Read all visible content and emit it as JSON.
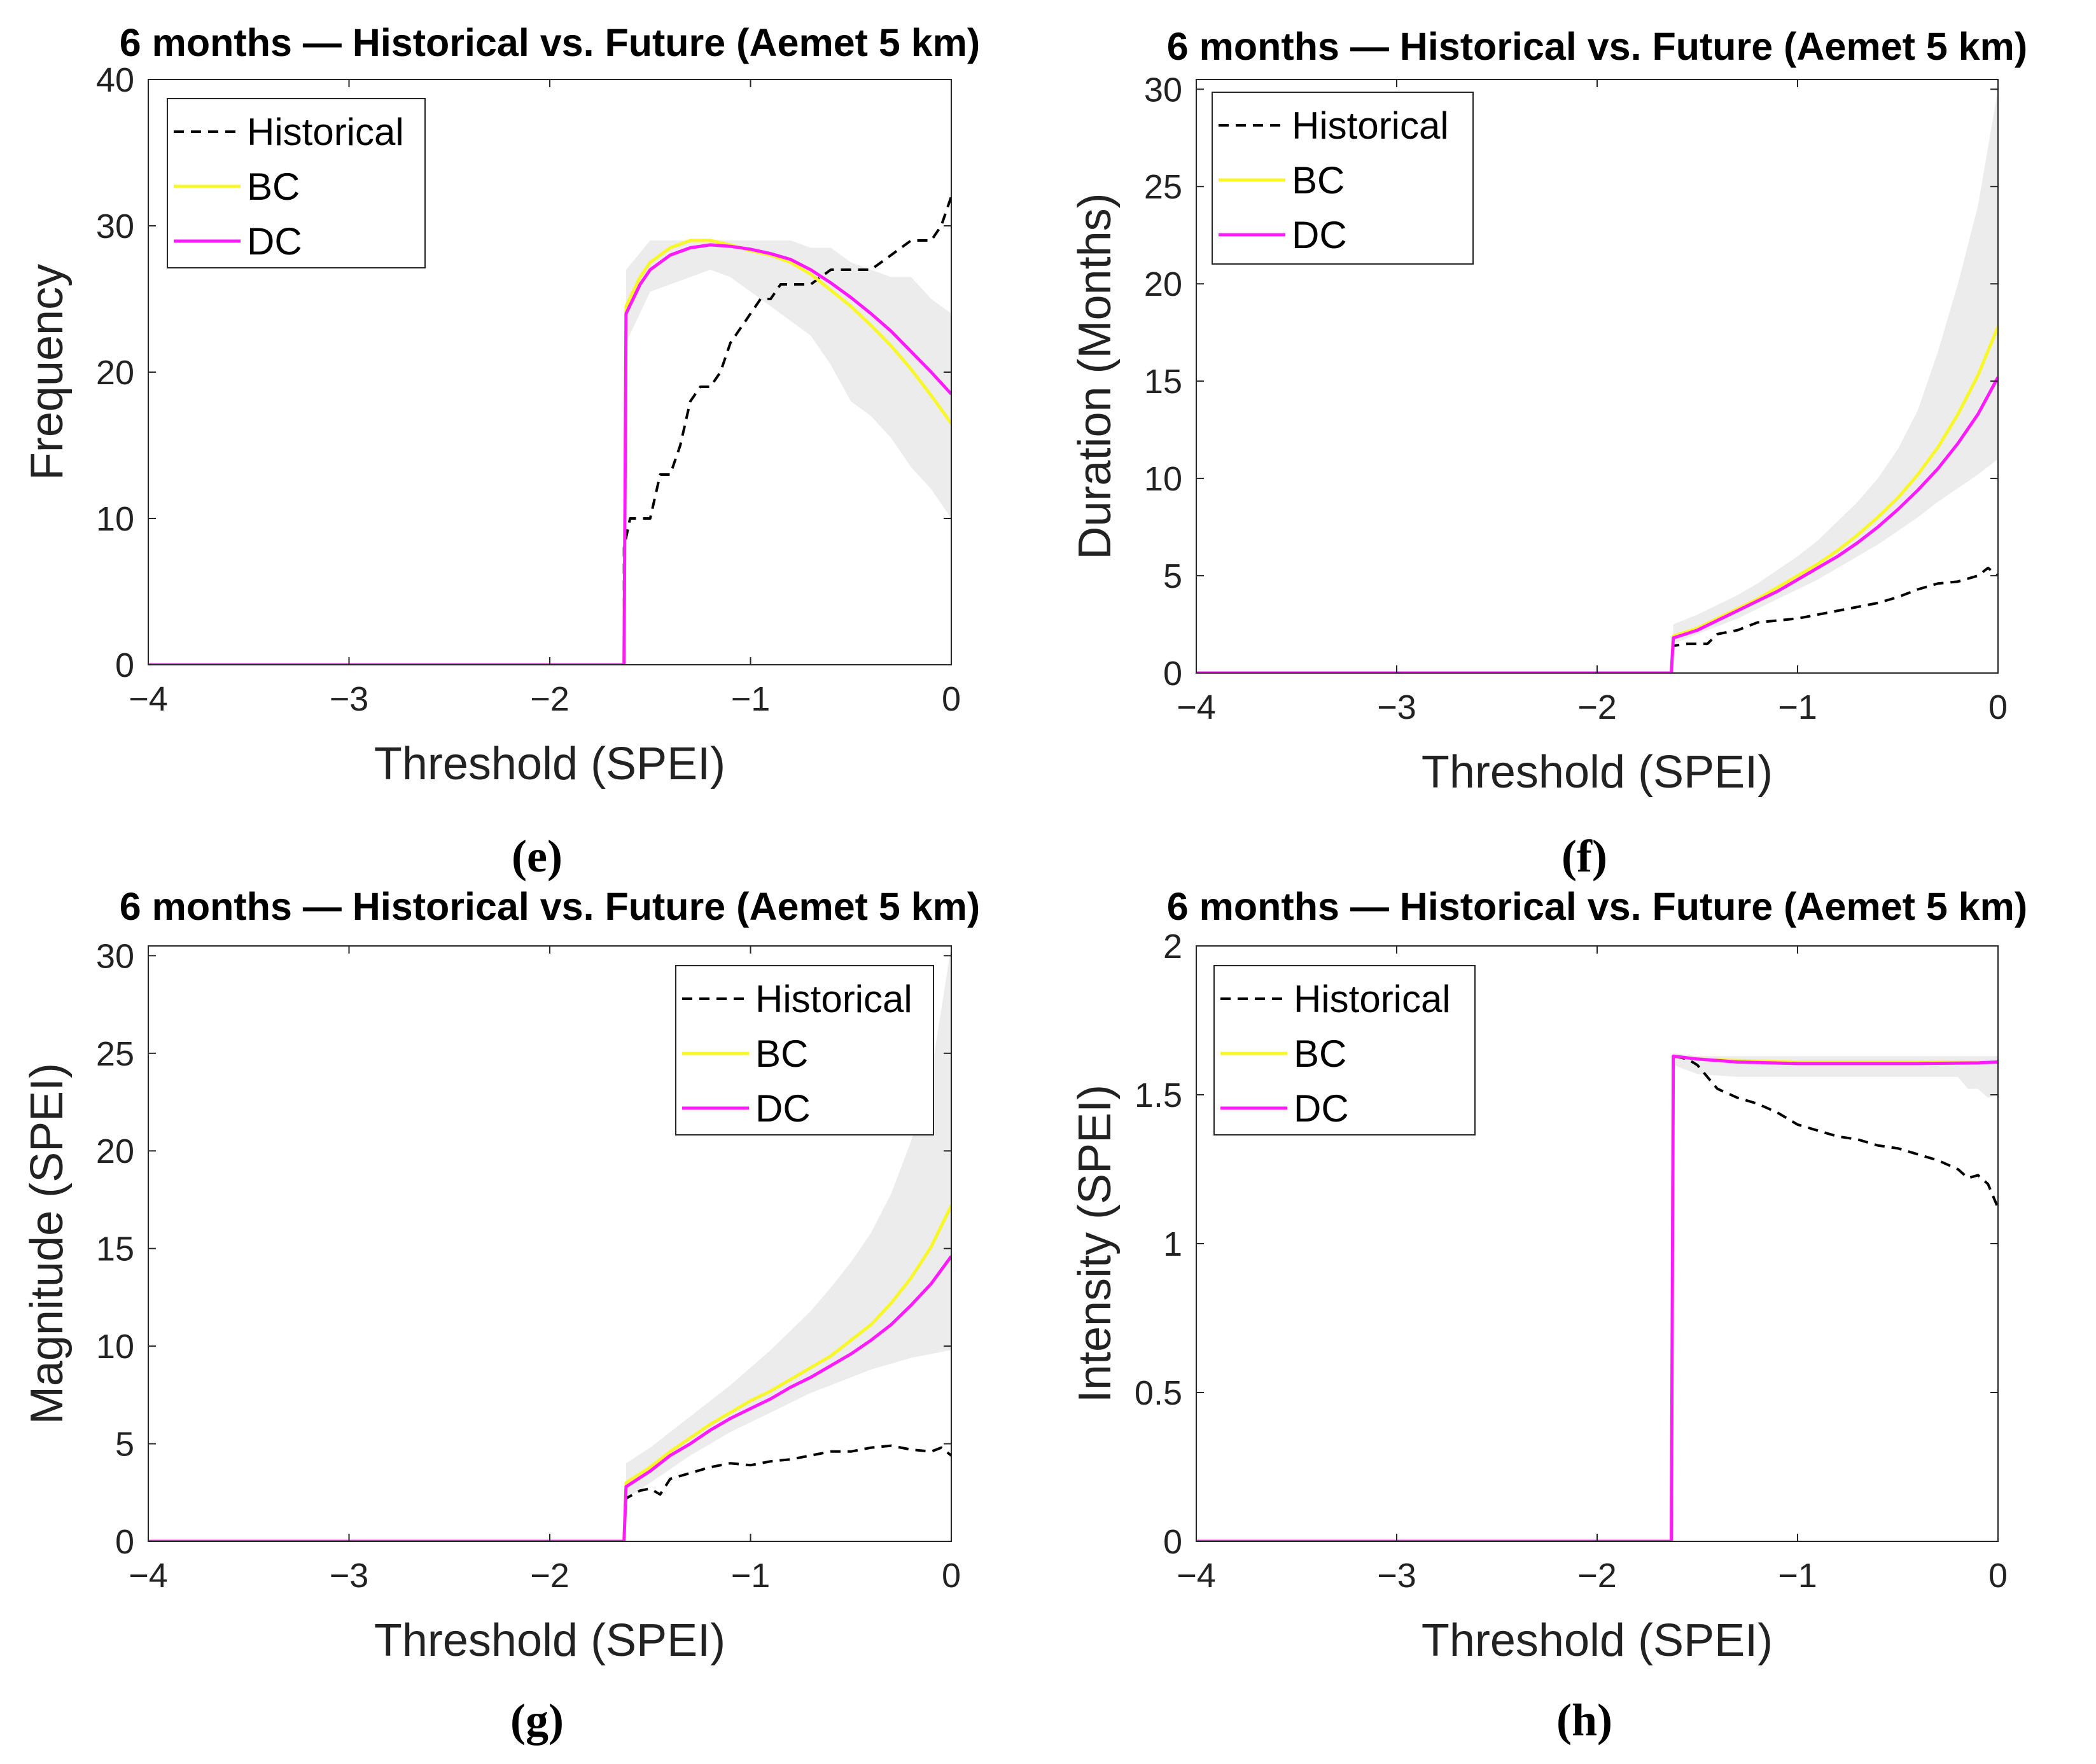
{
  "figure": {
    "panel_label_open": "(",
    "panel_label_close": ")"
  },
  "chart_data": [
    {
      "id": "e",
      "type": "line",
      "title": "6 months — Historical vs. Future (Aemet 5 km)",
      "xlabel": "Threshold (SPEI)",
      "ylabel": "Frequency",
      "panel_label": "e",
      "xlim": [
        -4,
        0
      ],
      "ylim": [
        0,
        40
      ],
      "xticks": [
        -4,
        -3,
        -2,
        -1,
        0
      ],
      "xtick_labels": [
        "−4",
        "−3",
        "−2",
        "−1",
        "0"
      ],
      "yticks": [
        0,
        10,
        20,
        30,
        40
      ],
      "ytick_labels": [
        "0",
        "10",
        "20",
        "30",
        "40"
      ],
      "legend_position": "top-left",
      "legend": [
        "Historical",
        "BC",
        "DC"
      ],
      "band": {
        "x": [
          -1.62,
          -1.5,
          -1.4,
          -1.3,
          -1.2,
          -1.1,
          -1.0,
          -0.9,
          -0.8,
          -0.7,
          -0.6,
          -0.5,
          -0.4,
          -0.3,
          -0.2,
          -0.1,
          0.0
        ],
        "upper": [
          27,
          29,
          29,
          29,
          29,
          29,
          29,
          29,
          29,
          28.5,
          28.5,
          27.5,
          27,
          26.5,
          26.5,
          25,
          24
        ],
        "lower": [
          22,
          25.5,
          26,
          26.5,
          27,
          26.5,
          25.5,
          24.5,
          23.5,
          22.5,
          20.5,
          18,
          17,
          15.5,
          13.5,
          12,
          10
        ]
      },
      "series": [
        {
          "name": "Historical",
          "x": [
            -4,
            -1.63,
            -1.63,
            -1.6,
            -1.5,
            -1.45,
            -1.4,
            -1.35,
            -1.3,
            -1.25,
            -1.2,
            -1.15,
            -1.1,
            -1.05,
            -1.0,
            -0.95,
            -0.9,
            -0.85,
            -0.8,
            -0.75,
            -0.7,
            -0.6,
            -0.5,
            -0.4,
            -0.3,
            -0.2,
            -0.1,
            -0.05,
            0.0
          ],
          "y": [
            0,
            0,
            8,
            10,
            10,
            13,
            13,
            15,
            18,
            19,
            19,
            20,
            22,
            23,
            24,
            25,
            25,
            26,
            26,
            26,
            26,
            27,
            27,
            27,
            28,
            29,
            29,
            30,
            32
          ]
        },
        {
          "name": "BC",
          "x": [
            -4,
            -1.63,
            -1.62,
            -1.55,
            -1.5,
            -1.4,
            -1.3,
            -1.2,
            -1.1,
            -1.0,
            -0.9,
            -0.8,
            -0.7,
            -0.6,
            -0.5,
            -0.4,
            -0.3,
            -0.2,
            -0.1,
            0.0
          ],
          "y": [
            0,
            0,
            24.5,
            26.5,
            27.5,
            28.5,
            29,
            29,
            28.7,
            28.3,
            28,
            27.5,
            26.7,
            25.6,
            24.5,
            23.2,
            21.8,
            20.2,
            18.4,
            16.5
          ]
        },
        {
          "name": "DC",
          "x": [
            -4,
            -1.63,
            -1.62,
            -1.55,
            -1.5,
            -1.4,
            -1.3,
            -1.2,
            -1.1,
            -1.0,
            -0.9,
            -0.8,
            -0.7,
            -0.6,
            -0.5,
            -0.4,
            -0.3,
            -0.2,
            -0.1,
            0.0
          ],
          "y": [
            0,
            0,
            24,
            26,
            27,
            28,
            28.5,
            28.7,
            28.6,
            28.4,
            28.1,
            27.7,
            27,
            26.1,
            25.1,
            24,
            22.8,
            21.4,
            20,
            18.5
          ]
        }
      ]
    },
    {
      "id": "f",
      "type": "line",
      "title": "6 months — Historical vs. Future (Aemet 5 km)",
      "xlabel": "Threshold (SPEI)",
      "ylabel": "Duration (Months)",
      "panel_label": "f",
      "xlim": [
        -4,
        0
      ],
      "ylim": [
        0,
        30.5
      ],
      "xticks": [
        -4,
        -3,
        -2,
        -1,
        0
      ],
      "xtick_labels": [
        "−4",
        "−3",
        "−2",
        "−1",
        "0"
      ],
      "yticks": [
        0,
        5,
        10,
        15,
        20,
        25,
        30
      ],
      "ytick_labels": [
        "0",
        "5",
        "10",
        "15",
        "20",
        "25",
        "30"
      ],
      "legend_position": "top-left",
      "legend": [
        "Historical",
        "BC",
        "DC"
      ],
      "band": {
        "x": [
          -1.62,
          -1.5,
          -1.4,
          -1.3,
          -1.2,
          -1.1,
          -1.0,
          -0.9,
          -0.8,
          -0.7,
          -0.6,
          -0.5,
          -0.4,
          -0.3,
          -0.2,
          -0.1,
          0.0
        ],
        "upper": [
          2.5,
          3.0,
          3.5,
          4.0,
          4.6,
          5.3,
          6.0,
          6.8,
          7.8,
          8.8,
          10.0,
          11.5,
          13.5,
          16.5,
          20,
          24,
          30
        ],
        "lower": [
          1.5,
          2.0,
          2.4,
          2.8,
          3.3,
          3.8,
          4.3,
          4.8,
          5.4,
          6.0,
          6.6,
          7.3,
          8.0,
          8.8,
          9.5,
          10.2,
          11.0
        ]
      },
      "series": [
        {
          "name": "Historical",
          "x": [
            -4,
            -1.63,
            -1.62,
            -1.55,
            -1.45,
            -1.4,
            -1.3,
            -1.2,
            -1.1,
            -1.0,
            -0.9,
            -0.8,
            -0.7,
            -0.6,
            -0.5,
            -0.4,
            -0.3,
            -0.2,
            -0.1,
            -0.05,
            0.0
          ],
          "y": [
            0,
            0,
            1.4,
            1.5,
            1.5,
            2.0,
            2.2,
            2.6,
            2.7,
            2.8,
            3.0,
            3.2,
            3.4,
            3.6,
            3.9,
            4.3,
            4.6,
            4.7,
            5.0,
            5.4,
            5.0
          ]
        },
        {
          "name": "BC",
          "x": [
            -4,
            -1.63,
            -1.62,
            -1.5,
            -1.4,
            -1.3,
            -1.2,
            -1.1,
            -1.0,
            -0.9,
            -0.8,
            -0.7,
            -0.6,
            -0.5,
            -0.4,
            -0.3,
            -0.2,
            -0.1,
            0.0
          ],
          "y": [
            0,
            0,
            1.9,
            2.3,
            2.8,
            3.3,
            3.8,
            4.4,
            5.0,
            5.6,
            6.3,
            7.1,
            8.0,
            9.0,
            10.2,
            11.6,
            13.3,
            15.3,
            17.8
          ]
        },
        {
          "name": "DC",
          "x": [
            -4,
            -1.63,
            -1.62,
            -1.5,
            -1.4,
            -1.3,
            -1.2,
            -1.1,
            -1.0,
            -0.9,
            -0.8,
            -0.7,
            -0.6,
            -0.5,
            -0.4,
            -0.3,
            -0.2,
            -0.1,
            0.0
          ],
          "y": [
            0,
            0,
            1.8,
            2.2,
            2.7,
            3.2,
            3.7,
            4.2,
            4.8,
            5.4,
            6.0,
            6.7,
            7.5,
            8.4,
            9.4,
            10.5,
            11.8,
            13.3,
            15.2
          ]
        }
      ]
    },
    {
      "id": "g",
      "type": "line",
      "title": "6 months — Historical vs. Future (Aemet 5 km)",
      "xlabel": "Threshold (SPEI)",
      "ylabel": "Magnitude (SPEI)",
      "panel_label": "g",
      "xlim": [
        -4,
        0
      ],
      "ylim": [
        0,
        30.5
      ],
      "xticks": [
        -4,
        -3,
        -2,
        -1,
        0
      ],
      "xtick_labels": [
        "−4",
        "−3",
        "−2",
        "−1",
        "0"
      ],
      "yticks": [
        0,
        5,
        10,
        15,
        20,
        25,
        30
      ],
      "ytick_labels": [
        "0",
        "5",
        "10",
        "15",
        "20",
        "25",
        "30"
      ],
      "legend_position": "top-right",
      "legend": [
        "Historical",
        "BC",
        "DC"
      ],
      "band": {
        "x": [
          -1.62,
          -1.5,
          -1.4,
          -1.3,
          -1.2,
          -1.1,
          -1.0,
          -0.9,
          -0.8,
          -0.7,
          -0.6,
          -0.5,
          -0.4,
          -0.3,
          -0.2,
          -0.1,
          0.0
        ],
        "upper": [
          4.0,
          4.8,
          5.6,
          6.4,
          7.2,
          8.0,
          8.9,
          9.8,
          10.8,
          11.8,
          13.0,
          14.3,
          15.8,
          17.8,
          20.5,
          24,
          30.5
        ],
        "lower": [
          2.2,
          3.0,
          3.7,
          4.4,
          5.0,
          5.6,
          6.1,
          6.6,
          7.1,
          7.6,
          8.0,
          8.4,
          8.8,
          9.1,
          9.4,
          9.6,
          9.8
        ]
      },
      "series": [
        {
          "name": "Historical",
          "x": [
            -4,
            -1.63,
            -1.62,
            -1.55,
            -1.5,
            -1.45,
            -1.4,
            -1.3,
            -1.2,
            -1.1,
            -1.0,
            -0.9,
            -0.8,
            -0.7,
            -0.6,
            -0.5,
            -0.4,
            -0.3,
            -0.2,
            -0.1,
            -0.05,
            0.0
          ],
          "y": [
            0,
            0,
            2.2,
            2.6,
            2.7,
            2.4,
            3.2,
            3.5,
            3.8,
            4.0,
            3.9,
            4.1,
            4.2,
            4.4,
            4.6,
            4.6,
            4.8,
            4.9,
            4.7,
            4.6,
            4.8,
            4.4
          ]
        },
        {
          "name": "BC",
          "x": [
            -4,
            -1.63,
            -1.62,
            -1.5,
            -1.4,
            -1.3,
            -1.2,
            -1.1,
            -1.0,
            -0.9,
            -0.8,
            -0.7,
            -0.6,
            -0.5,
            -0.4,
            -0.3,
            -0.2,
            -0.1,
            0.0
          ],
          "y": [
            0,
            0,
            3.0,
            3.8,
            4.6,
            5.3,
            6.0,
            6.6,
            7.2,
            7.7,
            8.3,
            8.9,
            9.5,
            10.3,
            11.1,
            12.2,
            13.5,
            15.1,
            17.2
          ]
        },
        {
          "name": "DC",
          "x": [
            -4,
            -1.63,
            -1.62,
            -1.5,
            -1.4,
            -1.3,
            -1.2,
            -1.1,
            -1.0,
            -0.9,
            -0.8,
            -0.7,
            -0.6,
            -0.5,
            -0.4,
            -0.3,
            -0.2,
            -0.1,
            0.0
          ],
          "y": [
            0,
            0,
            2.8,
            3.6,
            4.4,
            5.0,
            5.7,
            6.3,
            6.8,
            7.3,
            7.9,
            8.4,
            9.0,
            9.6,
            10.3,
            11.1,
            12.1,
            13.2,
            14.6
          ]
        }
      ]
    },
    {
      "id": "h",
      "type": "line",
      "title": "6 months — Historical vs. Future (Aemet 5 km)",
      "xlabel": "Threshold (SPEI)",
      "ylabel": "Intensity (SPEI)",
      "panel_label": "h",
      "xlim": [
        -4,
        0
      ],
      "ylim": [
        0,
        2
      ],
      "xticks": [
        -4,
        -3,
        -2,
        -1,
        0
      ],
      "xtick_labels": [
        "−4",
        "−3",
        "−2",
        "−1",
        "0"
      ],
      "yticks": [
        0,
        0.5,
        1,
        1.5,
        2
      ],
      "ytick_labels": [
        "0",
        "0.5",
        "1",
        "1.5",
        "2"
      ],
      "legend_position": "top-left",
      "legend": [
        "Historical",
        "BC",
        "DC"
      ],
      "band": {
        "x": [
          -1.62,
          -1.5,
          -1.3,
          -1.0,
          -0.7,
          -0.4,
          -0.2,
          -0.15,
          -0.1,
          -0.05,
          0.0
        ],
        "upper": [
          1.64,
          1.63,
          1.63,
          1.63,
          1.63,
          1.63,
          1.63,
          1.63,
          1.63,
          1.63,
          1.63
        ],
        "lower": [
          1.6,
          1.57,
          1.56,
          1.56,
          1.56,
          1.56,
          1.56,
          1.52,
          1.52,
          1.49,
          1.5
        ]
      },
      "series": [
        {
          "name": "Historical",
          "x": [
            -4,
            -1.63,
            -1.62,
            -1.55,
            -1.5,
            -1.45,
            -1.4,
            -1.3,
            -1.2,
            -1.1,
            -1.0,
            -0.9,
            -0.8,
            -0.7,
            -0.6,
            -0.5,
            -0.4,
            -0.3,
            -0.2,
            -0.15,
            -0.1,
            -0.05,
            0.0
          ],
          "y": [
            0,
            0,
            1.63,
            1.62,
            1.6,
            1.56,
            1.52,
            1.49,
            1.47,
            1.44,
            1.4,
            1.38,
            1.36,
            1.35,
            1.33,
            1.32,
            1.3,
            1.28,
            1.25,
            1.22,
            1.23,
            1.2,
            1.12
          ]
        },
        {
          "name": "BC",
          "x": [
            -4,
            -1.63,
            -1.62,
            -1.5,
            -1.3,
            -1.0,
            -0.7,
            -0.4,
            -0.1,
            0.0
          ],
          "y": [
            0,
            0,
            1.63,
            1.62,
            1.615,
            1.61,
            1.61,
            1.61,
            1.61,
            1.61
          ]
        },
        {
          "name": "DC",
          "x": [
            -4,
            -1.63,
            -1.62,
            -1.5,
            -1.3,
            -1.0,
            -0.7,
            -0.4,
            -0.1,
            0.0
          ],
          "y": [
            0,
            0,
            1.63,
            1.62,
            1.61,
            1.605,
            1.605,
            1.605,
            1.607,
            1.61
          ]
        }
      ]
    }
  ],
  "colors": {
    "historical": "#000000",
    "bc": "#f7f72a",
    "dc": "#ff1aff",
    "band": "#ececec",
    "axis": "#262626",
    "grid_tick": "#262626"
  }
}
